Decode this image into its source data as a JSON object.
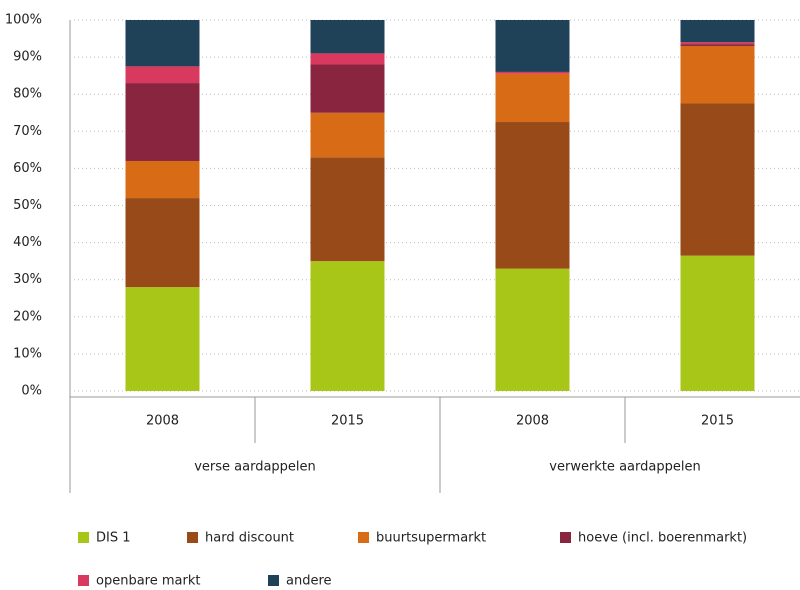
{
  "chart_data": {
    "type": "stacked_bar",
    "categories": [
      "2008",
      "2015",
      "2008",
      "2015"
    ],
    "groups": [
      "verse aardappelen",
      "verwerkte aardappelen"
    ],
    "series": [
      {
        "name": "DIS 1",
        "color": "#a8c617",
        "values": [
          28,
          35,
          33,
          36.5
        ]
      },
      {
        "name": "hard discount",
        "color": "#984a19",
        "values": [
          24,
          28,
          39.5,
          41
        ]
      },
      {
        "name": "buurtsupermarkt",
        "color": "#d86c16",
        "values": [
          10,
          12,
          13,
          15.5
        ]
      },
      {
        "name": "hoeve (incl. boerenmarkt)",
        "color": "#8a2540",
        "values": [
          21,
          13,
          0,
          0.5
        ]
      },
      {
        "name": "openbare markt",
        "color": "#d9395f",
        "values": [
          4.5,
          3,
          0.5,
          0.5
        ]
      },
      {
        "name": "andere",
        "color": "#1f4259",
        "values": [
          12.5,
          9,
          14,
          6
        ]
      }
    ],
    "ylim": [
      0,
      100
    ],
    "yticks": [
      {
        "value": 0,
        "label": "0%"
      },
      {
        "value": 10,
        "label": "10%"
      },
      {
        "value": 20,
        "label": "20%"
      },
      {
        "value": 30,
        "label": "30%"
      },
      {
        "value": 40,
        "label": "40%"
      },
      {
        "value": 50,
        "label": "50%"
      },
      {
        "value": 60,
        "label": "60%"
      },
      {
        "value": 70,
        "label": "70%"
      },
      {
        "value": 80,
        "label": "80%"
      },
      {
        "value": 90,
        "label": "90%"
      },
      {
        "value": 100,
        "label": "100%"
      }
    ],
    "grid": true
  }
}
